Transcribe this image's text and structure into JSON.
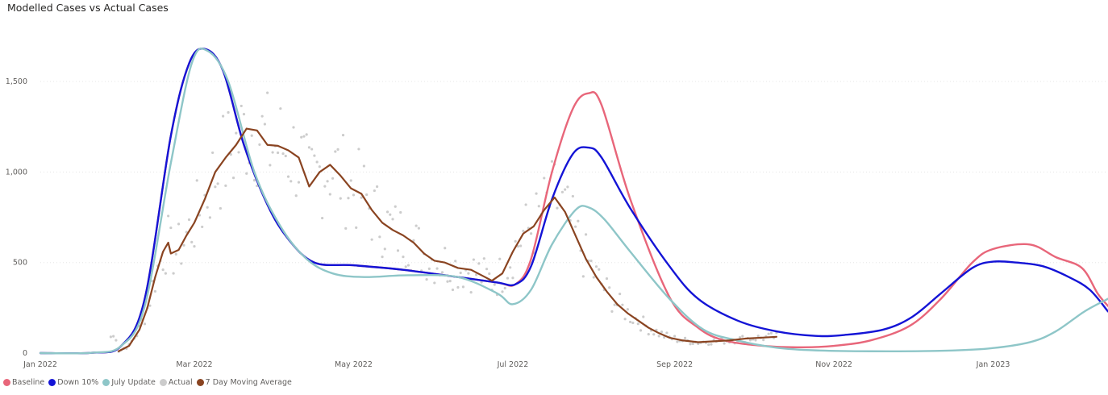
{
  "chart_data": {
    "type": "line",
    "title": "Modelled Cases vs Actual Cases",
    "x_axis": {
      "ticks": [
        "Jan 2022",
        "Mar 2022",
        "May 2022",
        "Jul 2022",
        "Sep 2022",
        "Nov 2022",
        "Jan 2023"
      ],
      "range": [
        "2022-01-01",
        "2023-02-14"
      ]
    },
    "y_axis": {
      "ticks": [
        "0",
        "500",
        "1,000",
        "1,500"
      ],
      "range": [
        0,
        1750
      ],
      "gridlines": true
    },
    "legend_position": "bottom-left",
    "series": [
      {
        "name": "Baseline",
        "color": "#e8667a",
        "kind": "line",
        "points": [
          [
            "2022-01-01",
            0
          ],
          [
            "2022-01-21",
            2
          ],
          [
            "2022-02-01",
            40
          ],
          [
            "2022-02-10",
            300
          ],
          [
            "2022-02-20",
            1200
          ],
          [
            "2022-02-27",
            1600
          ],
          [
            "2022-03-05",
            1680
          ],
          [
            "2022-03-12",
            1560
          ],
          [
            "2022-03-20",
            1150
          ],
          [
            "2022-03-29",
            820
          ],
          [
            "2022-04-06",
            630
          ],
          [
            "2022-04-16",
            500
          ],
          [
            "2022-05-01",
            485
          ],
          [
            "2022-05-20",
            460
          ],
          [
            "2022-06-10",
            420
          ],
          [
            "2022-06-25",
            390
          ],
          [
            "2022-07-02",
            380
          ],
          [
            "2022-07-08",
            520
          ],
          [
            "2022-07-16",
            1000
          ],
          [
            "2022-07-24",
            1350
          ],
          [
            "2022-07-30",
            1435
          ],
          [
            "2022-08-04",
            1370
          ],
          [
            "2022-08-15",
            850
          ],
          [
            "2022-08-30",
            310
          ],
          [
            "2022-09-10",
            140
          ],
          [
            "2022-09-20",
            70
          ],
          [
            "2022-10-05",
            40
          ],
          [
            "2022-10-20",
            32
          ],
          [
            "2022-11-01",
            40
          ],
          [
            "2022-11-15",
            70
          ],
          [
            "2022-11-30",
            150
          ],
          [
            "2022-12-12",
            300
          ],
          [
            "2022-12-24",
            500
          ],
          [
            "2023-01-01",
            575
          ],
          [
            "2023-01-15",
            600
          ],
          [
            "2023-01-25",
            530
          ],
          [
            "2023-02-04",
            470
          ],
          [
            "2023-02-10",
            330
          ],
          [
            "2023-02-14",
            260
          ]
        ]
      },
      {
        "name": "Down 10%",
        "color": "#1414d6",
        "kind": "line",
        "points": [
          [
            "2022-01-01",
            0
          ],
          [
            "2022-01-21",
            2
          ],
          [
            "2022-02-01",
            40
          ],
          [
            "2022-02-10",
            300
          ],
          [
            "2022-02-20",
            1200
          ],
          [
            "2022-02-27",
            1600
          ],
          [
            "2022-03-05",
            1680
          ],
          [
            "2022-03-12",
            1560
          ],
          [
            "2022-03-20",
            1150
          ],
          [
            "2022-03-29",
            820
          ],
          [
            "2022-04-06",
            630
          ],
          [
            "2022-04-16",
            500
          ],
          [
            "2022-05-01",
            485
          ],
          [
            "2022-05-20",
            460
          ],
          [
            "2022-06-10",
            420
          ],
          [
            "2022-06-25",
            390
          ],
          [
            "2022-07-02",
            380
          ],
          [
            "2022-07-08",
            480
          ],
          [
            "2022-07-16",
            850
          ],
          [
            "2022-07-24",
            1100
          ],
          [
            "2022-07-30",
            1135
          ],
          [
            "2022-08-04",
            1080
          ],
          [
            "2022-08-15",
            800
          ],
          [
            "2022-08-30",
            480
          ],
          [
            "2022-09-10",
            300
          ],
          [
            "2022-09-25",
            180
          ],
          [
            "2022-10-10",
            120
          ],
          [
            "2022-10-25",
            95
          ],
          [
            "2022-11-05",
            100
          ],
          [
            "2022-11-20",
            130
          ],
          [
            "2022-12-01",
            200
          ],
          [
            "2022-12-12",
            330
          ],
          [
            "2022-12-24",
            470
          ],
          [
            "2023-01-01",
            505
          ],
          [
            "2023-01-10",
            500
          ],
          [
            "2023-01-20",
            480
          ],
          [
            "2023-01-30",
            420
          ],
          [
            "2023-02-07",
            350
          ],
          [
            "2023-02-14",
            230
          ]
        ]
      },
      {
        "name": "July Update",
        "color": "#8ec6c8",
        "kind": "line",
        "points": [
          [
            "2022-01-01",
            0
          ],
          [
            "2022-01-21",
            2
          ],
          [
            "2022-02-01",
            40
          ],
          [
            "2022-02-10",
            260
          ],
          [
            "2022-02-20",
            1050
          ],
          [
            "2022-02-28",
            1600
          ],
          [
            "2022-03-06",
            1670
          ],
          [
            "2022-03-14",
            1500
          ],
          [
            "2022-03-24",
            1000
          ],
          [
            "2022-04-03",
            700
          ],
          [
            "2022-04-13",
            520
          ],
          [
            "2022-04-23",
            440
          ],
          [
            "2022-05-05",
            420
          ],
          [
            "2022-05-22",
            430
          ],
          [
            "2022-06-10",
            420
          ],
          [
            "2022-06-25",
            330
          ],
          [
            "2022-07-01",
            270
          ],
          [
            "2022-07-08",
            350
          ],
          [
            "2022-07-16",
            600
          ],
          [
            "2022-07-25",
            790
          ],
          [
            "2022-07-30",
            805
          ],
          [
            "2022-08-05",
            740
          ],
          [
            "2022-08-15",
            560
          ],
          [
            "2022-08-30",
            300
          ],
          [
            "2022-09-12",
            130
          ],
          [
            "2022-09-25",
            70
          ],
          [
            "2022-10-10",
            30
          ],
          [
            "2022-10-25",
            15
          ],
          [
            "2022-11-15",
            10
          ],
          [
            "2022-12-10",
            12
          ],
          [
            "2022-12-30",
            25
          ],
          [
            "2023-01-15",
            60
          ],
          [
            "2023-01-25",
            120
          ],
          [
            "2023-02-05",
            230
          ],
          [
            "2023-02-14",
            300
          ]
        ]
      },
      {
        "name": "7 Day Moving Average",
        "color": "#8a4421",
        "kind": "line",
        "points": [
          [
            "2022-01-31",
            10
          ],
          [
            "2022-02-04",
            40
          ],
          [
            "2022-02-08",
            130
          ],
          [
            "2022-02-11",
            250
          ],
          [
            "2022-02-14",
            420
          ],
          [
            "2022-02-17",
            560
          ],
          [
            "2022-02-19",
            610
          ],
          [
            "2022-02-20",
            550
          ],
          [
            "2022-02-23",
            570
          ],
          [
            "2022-02-26",
            650
          ],
          [
            "2022-03-01",
            720
          ],
          [
            "2022-03-05",
            850
          ],
          [
            "2022-03-09",
            1000
          ],
          [
            "2022-03-13",
            1080
          ],
          [
            "2022-03-17",
            1150
          ],
          [
            "2022-03-21",
            1240
          ],
          [
            "2022-03-25",
            1230
          ],
          [
            "2022-03-29",
            1150
          ],
          [
            "2022-04-02",
            1145
          ],
          [
            "2022-04-06",
            1120
          ],
          [
            "2022-04-10",
            1080
          ],
          [
            "2022-04-14",
            920
          ],
          [
            "2022-04-18",
            1000
          ],
          [
            "2022-04-22",
            1040
          ],
          [
            "2022-04-26",
            980
          ],
          [
            "2022-04-30",
            910
          ],
          [
            "2022-05-04",
            880
          ],
          [
            "2022-05-08",
            790
          ],
          [
            "2022-05-12",
            720
          ],
          [
            "2022-05-16",
            680
          ],
          [
            "2022-05-20",
            650
          ],
          [
            "2022-05-24",
            610
          ],
          [
            "2022-05-28",
            550
          ],
          [
            "2022-06-01",
            510
          ],
          [
            "2022-06-05",
            500
          ],
          [
            "2022-06-10",
            470
          ],
          [
            "2022-06-15",
            460
          ],
          [
            "2022-06-19",
            430
          ],
          [
            "2022-06-23",
            400
          ],
          [
            "2022-06-27",
            440
          ],
          [
            "2022-07-01",
            560
          ],
          [
            "2022-07-05",
            660
          ],
          [
            "2022-07-09",
            700
          ],
          [
            "2022-07-13",
            790
          ],
          [
            "2022-07-17",
            860
          ],
          [
            "2022-07-21",
            780
          ],
          [
            "2022-07-25",
            650
          ],
          [
            "2022-07-29",
            520
          ],
          [
            "2022-08-02",
            420
          ],
          [
            "2022-08-06",
            340
          ],
          [
            "2022-08-10",
            270
          ],
          [
            "2022-08-14",
            220
          ],
          [
            "2022-08-18",
            180
          ],
          [
            "2022-08-22",
            140
          ],
          [
            "2022-08-26",
            110
          ],
          [
            "2022-08-30",
            85
          ],
          [
            "2022-09-04",
            70
          ],
          [
            "2022-09-10",
            60
          ],
          [
            "2022-09-16",
            65
          ],
          [
            "2022-09-22",
            70
          ],
          [
            "2022-09-28",
            80
          ],
          [
            "2022-10-04",
            85
          ],
          [
            "2022-10-10",
            90
          ]
        ]
      }
    ],
    "scatter": {
      "name": "Actual",
      "color": "#cccccc",
      "start": "2022-01-28",
      "end": "2022-10-10"
    }
  }
}
